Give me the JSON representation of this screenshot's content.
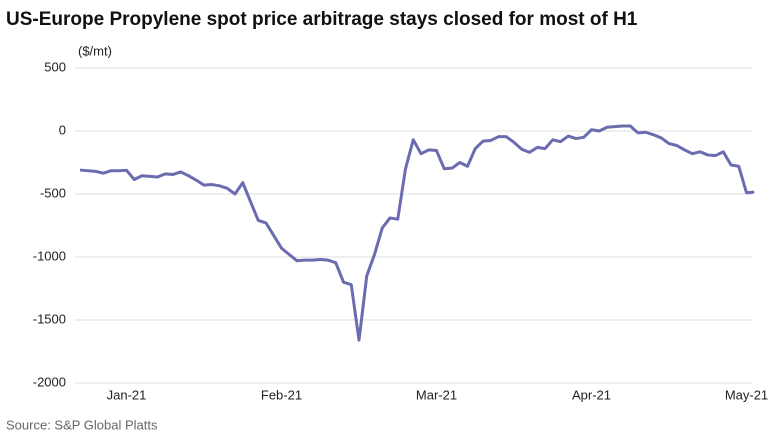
{
  "chart_data": {
    "type": "line",
    "title": "US-Europe Propylene spot price arbitrage stays closed for most of H1",
    "y_label": "($/mt)",
    "source": "Source: S&P Global Platts",
    "categories": [
      null,
      null,
      null,
      null,
      null,
      null,
      "Jan-21",
      null,
      null,
      null,
      null,
      null,
      null,
      null,
      null,
      null,
      null,
      null,
      null,
      null,
      null,
      null,
      null,
      null,
      null,
      null,
      "Feb-21",
      null,
      null,
      null,
      null,
      null,
      null,
      null,
      null,
      null,
      null,
      null,
      null,
      null,
      null,
      null,
      null,
      null,
      null,
      null,
      "Mar-21",
      null,
      null,
      null,
      null,
      null,
      null,
      null,
      null,
      null,
      null,
      null,
      null,
      null,
      null,
      null,
      null,
      null,
      null,
      null,
      "Apr-21",
      null,
      null,
      null,
      null,
      null,
      null,
      null,
      null,
      null,
      null,
      null,
      null,
      null,
      null,
      null,
      null,
      null,
      null,
      null,
      "May-21",
      null
    ],
    "series": [
      {
        "name": "Arbitrage",
        "color": "#6b6bb0",
        "values": [
          -310,
          -315,
          -320,
          -335,
          -315,
          -315,
          -312,
          -385,
          -355,
          -360,
          -365,
          -340,
          -345,
          -325,
          -355,
          -390,
          -430,
          -425,
          -435,
          -455,
          -500,
          -410,
          -560,
          -710,
          -730,
          -830,
          -930,
          -980,
          -1030,
          -1025,
          -1025,
          -1020,
          -1025,
          -1045,
          -1200,
          -1220,
          -1660,
          -1150,
          -980,
          -770,
          -690,
          -700,
          -300,
          -70,
          -180,
          -150,
          -155,
          -300,
          -295,
          -250,
          -280,
          -140,
          -80,
          -75,
          -45,
          -45,
          -90,
          -145,
          -170,
          -130,
          -140,
          -70,
          -85,
          -40,
          -60,
          -50,
          10,
          0,
          30,
          35,
          40,
          40,
          -15,
          -10,
          -30,
          -55,
          -100,
          -115,
          -150,
          -180,
          -165,
          -190,
          -195,
          -165,
          -270,
          -280,
          -490,
          -485
        ]
      }
    ],
    "ylim": [
      -2000,
      500
    ],
    "yticks": [
      -2000,
      -1500,
      -1000,
      -500,
      0,
      500
    ],
    "grid": true
  }
}
